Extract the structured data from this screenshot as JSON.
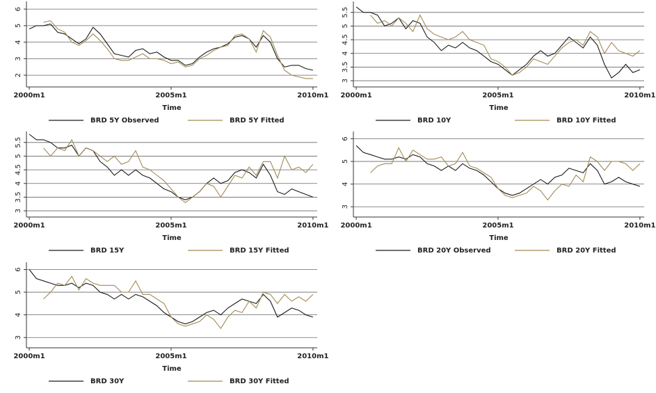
{
  "chart_data": [
    {
      "type": "line",
      "x_label": "Time",
      "x": [
        2000,
        2000.25,
        2000.5,
        2000.75,
        2001,
        2001.25,
        2001.5,
        2001.75,
        2002,
        2002.25,
        2002.5,
        2002.75,
        2003,
        2003.25,
        2003.5,
        2003.75,
        2004,
        2004.25,
        2004.5,
        2004.75,
        2005,
        2005.25,
        2005.5,
        2005.75,
        2006,
        2006.25,
        2006.5,
        2006.75,
        2007,
        2007.25,
        2007.5,
        2007.75,
        2008,
        2008.25,
        2008.5,
        2008.75,
        2009,
        2009.25,
        2009.5,
        2009.75,
        2010
      ],
      "xlim": [
        1999.9,
        2010.15
      ],
      "xticks": [
        {
          "value": 2000,
          "label": "2000m1"
        },
        {
          "value": 2005,
          "label": "2005m1"
        },
        {
          "value": 2010,
          "label": "2010m1"
        }
      ],
      "ylim": [
        1.5,
        6.3
      ],
      "yticks": [
        2,
        3,
        4,
        5,
        6
      ],
      "grid": true,
      "series": [
        {
          "name": "BRD 5Y Observed",
          "color": "#1a1a1a",
          "values": [
            4.8,
            5.0,
            5.0,
            5.1,
            4.6,
            4.5,
            4.2,
            3.9,
            4.2,
            4.9,
            4.5,
            3.9,
            3.3,
            3.2,
            3.1,
            3.5,
            3.6,
            3.3,
            3.4,
            3.1,
            2.9,
            2.9,
            2.6,
            2.7,
            3.1,
            3.4,
            3.6,
            3.7,
            3.9,
            4.3,
            4.4,
            4.2,
            3.7,
            4.4,
            4.0,
            3.0,
            2.5,
            2.6,
            2.6,
            2.4,
            2.3
          ]
        },
        {
          "name": "BRD 5Y Fitted",
          "color": "#a08a55",
          "values": [
            null,
            null,
            5.2,
            5.3,
            4.8,
            4.6,
            4.0,
            3.8,
            4.1,
            4.5,
            4.1,
            3.6,
            3.0,
            2.9,
            2.9,
            3.1,
            3.3,
            3.0,
            3.0,
            2.9,
            2.7,
            2.8,
            2.5,
            2.6,
            3.0,
            3.2,
            3.5,
            3.7,
            3.8,
            4.4,
            4.5,
            4.2,
            3.4,
            4.7,
            4.3,
            3.2,
            2.3,
            2.0,
            1.9,
            1.8,
            1.8
          ]
        }
      ]
    },
    {
      "type": "line",
      "x_label": "Time",
      "x": [
        2000,
        2000.25,
        2000.5,
        2000.75,
        2001,
        2001.25,
        2001.5,
        2001.75,
        2002,
        2002.25,
        2002.5,
        2002.75,
        2003,
        2003.25,
        2003.5,
        2003.75,
        2004,
        2004.25,
        2004.5,
        2004.75,
        2005,
        2005.25,
        2005.5,
        2005.75,
        2006,
        2006.25,
        2006.5,
        2006.75,
        2007,
        2007.25,
        2007.5,
        2007.75,
        2008,
        2008.25,
        2008.5,
        2008.75,
        2009,
        2009.25,
        2009.5,
        2009.75,
        2010
      ],
      "xlim": [
        1999.9,
        2010.15
      ],
      "xticks": [
        {
          "value": 2000,
          "label": "2000m1"
        },
        {
          "value": 2005,
          "label": "2005m1"
        },
        {
          "value": 2010,
          "label": "2010m1"
        }
      ],
      "ylim": [
        2.9,
        5.8
      ],
      "yticks": [
        3,
        3.5,
        4,
        4.5,
        5,
        5.5
      ],
      "grid": true,
      "series": [
        {
          "name": "BRD 10Y",
          "color": "#1a1a1a",
          "values": [
            5.7,
            5.5,
            5.5,
            5.4,
            5.0,
            5.1,
            5.3,
            4.9,
            5.2,
            5.1,
            4.6,
            4.4,
            4.1,
            4.3,
            4.2,
            4.4,
            4.2,
            4.1,
            3.9,
            3.7,
            3.6,
            3.4,
            3.2,
            3.4,
            3.6,
            3.9,
            4.1,
            3.9,
            4.0,
            4.3,
            4.6,
            4.4,
            4.2,
            4.6,
            4.3,
            3.6,
            3.1,
            3.3,
            3.6,
            3.3,
            3.4
          ]
        },
        {
          "name": "BRD 10Y Fitted",
          "color": "#a08a55",
          "values": [
            null,
            null,
            5.4,
            5.1,
            5.2,
            5.0,
            5.3,
            5.1,
            4.8,
            5.4,
            4.9,
            4.7,
            4.6,
            4.5,
            4.6,
            4.8,
            4.5,
            4.4,
            4.3,
            3.8,
            3.7,
            3.5,
            3.2,
            3.3,
            3.5,
            3.8,
            3.7,
            3.6,
            3.9,
            4.2,
            4.4,
            4.5,
            4.3,
            4.8,
            4.6,
            4.0,
            4.4,
            4.1,
            4.0,
            3.9,
            4.1
          ]
        }
      ]
    },
    {
      "type": "line",
      "x_label": "Time",
      "x": [
        2000,
        2000.25,
        2000.5,
        2000.75,
        2001,
        2001.25,
        2001.5,
        2001.75,
        2002,
        2002.25,
        2002.5,
        2002.75,
        2003,
        2003.25,
        2003.5,
        2003.75,
        2004,
        2004.25,
        2004.5,
        2004.75,
        2005,
        2005.25,
        2005.5,
        2005.75,
        2006,
        2006.25,
        2006.5,
        2006.75,
        2007,
        2007.25,
        2007.5,
        2007.75,
        2008,
        2008.25,
        2008.5,
        2008.75,
        2009,
        2009.25,
        2009.5,
        2009.75,
        2010
      ],
      "xlim": [
        1999.9,
        2010.15
      ],
      "xticks": [
        {
          "value": 2000,
          "label": "2000m1"
        },
        {
          "value": 2005,
          "label": "2005m1"
        },
        {
          "value": 2010,
          "label": "2010m1"
        }
      ],
      "ylim": [
        2.9,
        5.8
      ],
      "yticks": [
        3,
        3.5,
        4,
        4.5,
        5,
        5.5
      ],
      "grid": true,
      "series": [
        {
          "name": "BRD 15Y",
          "color": "#1a1a1a",
          "values": [
            5.8,
            5.6,
            5.6,
            5.5,
            5.3,
            5.3,
            5.4,
            5.0,
            5.3,
            5.2,
            4.8,
            4.6,
            4.3,
            4.5,
            4.3,
            4.5,
            4.3,
            4.2,
            4.0,
            3.8,
            3.7,
            3.5,
            3.4,
            3.5,
            3.7,
            4.0,
            4.2,
            4.0,
            4.1,
            4.4,
            4.5,
            4.4,
            4.2,
            4.7,
            4.3,
            3.7,
            3.6,
            3.8,
            3.7,
            3.6,
            3.5
          ]
        },
        {
          "name": "BRD 15Y Fitted",
          "color": "#a08a55",
          "values": [
            null,
            null,
            5.3,
            5.0,
            5.3,
            5.2,
            5.6,
            5.0,
            5.3,
            5.2,
            5.0,
            4.8,
            5.0,
            4.7,
            4.8,
            5.2,
            4.6,
            4.5,
            4.3,
            4.1,
            3.8,
            3.5,
            3.3,
            3.5,
            3.7,
            4.0,
            3.9,
            3.5,
            3.9,
            4.3,
            4.2,
            4.6,
            4.3,
            4.8,
            4.8,
            4.2,
            5.0,
            4.5,
            4.6,
            4.4,
            4.7
          ]
        }
      ]
    },
    {
      "type": "line",
      "x_label": "Time",
      "x": [
        2000,
        2000.25,
        2000.5,
        2000.75,
        2001,
        2001.25,
        2001.5,
        2001.75,
        2002,
        2002.25,
        2002.5,
        2002.75,
        2003,
        2003.25,
        2003.5,
        2003.75,
        2004,
        2004.25,
        2004.5,
        2004.75,
        2005,
        2005.25,
        2005.5,
        2005.75,
        2006,
        2006.25,
        2006.5,
        2006.75,
        2007,
        2007.25,
        2007.5,
        2007.75,
        2008,
        2008.25,
        2008.5,
        2008.75,
        2009,
        2009.25,
        2009.5,
        2009.75,
        2010
      ],
      "xlim": [
        1999.9,
        2010.15
      ],
      "xticks": [
        {
          "value": 2000,
          "label": "2000m1"
        },
        {
          "value": 2005,
          "label": "2005m1"
        },
        {
          "value": 2010,
          "label": "2010m1"
        }
      ],
      "ylim": [
        2.7,
        6.2
      ],
      "yticks": [
        3,
        4,
        5,
        6
      ],
      "grid": true,
      "series": [
        {
          "name": "BRD 20Y Observed",
          "color": "#1a1a1a",
          "values": [
            5.7,
            5.4,
            5.3,
            5.2,
            5.1,
            5.1,
            5.2,
            5.1,
            5.3,
            5.2,
            4.9,
            4.8,
            4.6,
            4.8,
            4.6,
            4.9,
            4.7,
            4.6,
            4.4,
            4.1,
            3.8,
            3.6,
            3.5,
            3.6,
            3.8,
            4.0,
            4.2,
            4.0,
            4.3,
            4.4,
            4.7,
            4.6,
            4.5,
            4.9,
            4.6,
            4.0,
            4.1,
            4.3,
            4.1,
            4.0,
            3.9
          ]
        },
        {
          "name": "BRD 20Y Fitted",
          "color": "#a08a55",
          "values": [
            null,
            null,
            4.5,
            4.8,
            4.9,
            4.9,
            5.6,
            5.0,
            5.5,
            5.3,
            5.1,
            5.1,
            5.2,
            4.8,
            4.9,
            5.4,
            4.8,
            4.7,
            4.5,
            4.3,
            3.8,
            3.5,
            3.4,
            3.5,
            3.6,
            3.9,
            3.7,
            3.3,
            3.7,
            4.0,
            3.9,
            4.4,
            4.1,
            5.2,
            5.0,
            4.6,
            5.0,
            5.0,
            4.9,
            4.6,
            4.9
          ]
        }
      ]
    },
    {
      "type": "line",
      "x_label": "Time",
      "x": [
        2000,
        2000.25,
        2000.5,
        2000.75,
        2001,
        2001.25,
        2001.5,
        2001.75,
        2002,
        2002.25,
        2002.5,
        2002.75,
        2003,
        2003.25,
        2003.5,
        2003.75,
        2004,
        2004.25,
        2004.5,
        2004.75,
        2005,
        2005.25,
        2005.5,
        2005.75,
        2006,
        2006.25,
        2006.5,
        2006.75,
        2007,
        2007.25,
        2007.5,
        2007.75,
        2008,
        2008.25,
        2008.5,
        2008.75,
        2009,
        2009.25,
        2009.5,
        2009.75,
        2010
      ],
      "xlim": [
        1999.9,
        2010.15
      ],
      "xticks": [
        {
          "value": 2000,
          "label": "2000m1"
        },
        {
          "value": 2005,
          "label": "2005m1"
        },
        {
          "value": 2010,
          "label": "2010m1"
        }
      ],
      "ylim": [
        2.7,
        6.2
      ],
      "yticks": [
        3,
        4,
        5,
        6
      ],
      "grid": true,
      "series": [
        {
          "name": "BRD 30Y",
          "color": "#1a1a1a",
          "values": [
            6.0,
            5.6,
            5.5,
            5.4,
            5.3,
            5.3,
            5.4,
            5.2,
            5.4,
            5.3,
            5.0,
            4.9,
            4.7,
            4.9,
            4.7,
            4.9,
            4.8,
            4.6,
            4.4,
            4.1,
            3.9,
            3.7,
            3.6,
            3.7,
            3.9,
            4.1,
            4.2,
            4.0,
            4.3,
            4.5,
            4.7,
            4.6,
            4.5,
            4.9,
            4.6,
            3.9,
            4.1,
            4.3,
            4.2,
            4.0,
            3.9
          ]
        },
        {
          "name": "BRD 30Y Fitted",
          "color": "#a08a55",
          "values": [
            null,
            null,
            4.7,
            5.0,
            5.4,
            5.3,
            5.7,
            5.1,
            5.6,
            5.4,
            5.3,
            5.3,
            5.3,
            5.0,
            5.0,
            5.5,
            4.9,
            4.9,
            4.7,
            4.5,
            3.9,
            3.6,
            3.5,
            3.6,
            3.7,
            4.0,
            3.8,
            3.4,
            3.9,
            4.2,
            4.1,
            4.6,
            4.3,
            5.0,
            4.9,
            4.5,
            4.9,
            4.6,
            4.8,
            4.6,
            4.9
          ]
        }
      ]
    }
  ]
}
